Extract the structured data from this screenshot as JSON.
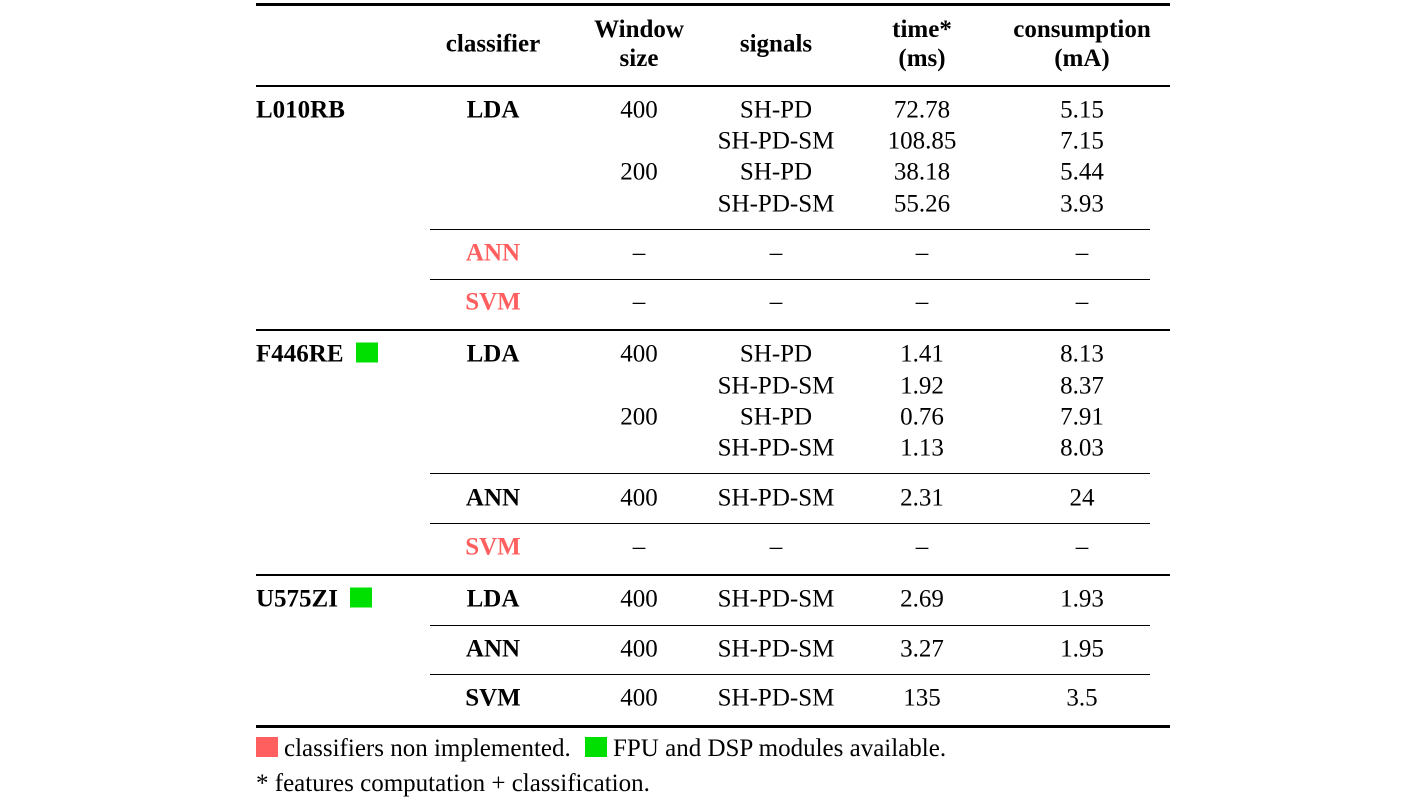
{
  "colors": {
    "not_implemented": "#ff5f5f",
    "fpu_dsp": "#00e000"
  },
  "headers": {
    "classifier": "classifier",
    "window": [
      "Window",
      "size"
    ],
    "signals": "signals",
    "time": [
      "time*",
      "(ms)"
    ],
    "consumption": [
      "consumption",
      "(mA)"
    ]
  },
  "devices": [
    {
      "name": "L010RB",
      "fpu_dsp": false,
      "classifiers": [
        {
          "name": "LDA",
          "implemented": true,
          "rows": [
            {
              "window": "400",
              "signals": "SH-PD",
              "time": "72.78",
              "consumption": "5.15"
            },
            {
              "window": "",
              "signals": "SH-PD-SM",
              "time": "108.85",
              "consumption": "7.15"
            },
            {
              "window": "200",
              "signals": "SH-PD",
              "time": "38.18",
              "consumption": "5.44"
            },
            {
              "window": "",
              "signals": "SH-PD-SM",
              "time": "55.26",
              "consumption": "3.93"
            }
          ]
        },
        {
          "name": "ANN",
          "implemented": false,
          "rows": [
            {
              "window": "–",
              "signals": "–",
              "time": "–",
              "consumption": "–"
            }
          ]
        },
        {
          "name": "SVM",
          "implemented": false,
          "rows": [
            {
              "window": "–",
              "signals": "–",
              "time": "–",
              "consumption": "–"
            }
          ]
        }
      ]
    },
    {
      "name": "F446RE",
      "fpu_dsp": true,
      "classifiers": [
        {
          "name": "LDA",
          "implemented": true,
          "rows": [
            {
              "window": "400",
              "signals": "SH-PD",
              "time": "1.41",
              "consumption": "8.13"
            },
            {
              "window": "",
              "signals": "SH-PD-SM",
              "time": "1.92",
              "consumption": "8.37"
            },
            {
              "window": "200",
              "signals": "SH-PD",
              "time": "0.76",
              "consumption": "7.91"
            },
            {
              "window": "",
              "signals": "SH-PD-SM",
              "time": "1.13",
              "consumption": "8.03"
            }
          ]
        },
        {
          "name": "ANN",
          "implemented": true,
          "rows": [
            {
              "window": "400",
              "signals": "SH-PD-SM",
              "time": "2.31",
              "consumption": "24"
            }
          ]
        },
        {
          "name": "SVM",
          "implemented": false,
          "rows": [
            {
              "window": "–",
              "signals": "–",
              "time": "–",
              "consumption": "–"
            }
          ]
        }
      ]
    },
    {
      "name": "U575ZI",
      "fpu_dsp": true,
      "classifiers": [
        {
          "name": "LDA",
          "implemented": true,
          "rows": [
            {
              "window": "400",
              "signals": "SH-PD-SM",
              "time": "2.69",
              "consumption": "1.93"
            }
          ]
        },
        {
          "name": "ANN",
          "implemented": true,
          "rows": [
            {
              "window": "400",
              "signals": "SH-PD-SM",
              "time": "3.27",
              "consumption": "1.95"
            }
          ]
        },
        {
          "name": "SVM",
          "implemented": true,
          "rows": [
            {
              "window": "400",
              "signals": "SH-PD-SM",
              "time": "135",
              "consumption": "3.5"
            }
          ]
        }
      ]
    }
  ],
  "footnotes": {
    "not_implemented": "classifiers non implemented.",
    "fpu_dsp": "FPU and DSP modules available.",
    "time_note": "* features computation + classification."
  }
}
